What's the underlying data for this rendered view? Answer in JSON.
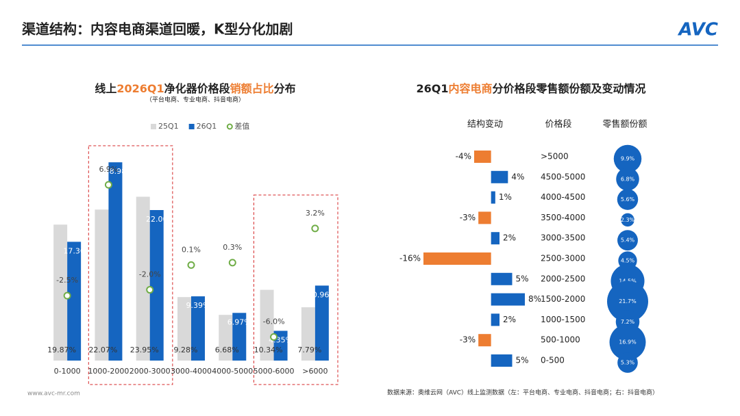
{
  "header": {
    "title": "渠道结构：内容电商渠道回暖，K型分化加剧",
    "logo": "AVC"
  },
  "chart_data": [
    {
      "type": "bar",
      "title_segments": [
        {
          "text": "线上",
          "highlight": false
        },
        {
          "text": "2026Q1",
          "highlight": true
        },
        {
          "text": "净化器价格段",
          "highlight": false
        },
        {
          "text": "销额占比",
          "highlight": true
        },
        {
          "text": "分布",
          "highlight": false
        }
      ],
      "highlight_color": "#ed7d31",
      "subtitle": "（平台电商、专业电商、抖音电商）",
      "categories": [
        "0-1000",
        "1000-2000",
        "2000-3000",
        "3000-4000",
        "4000-5000",
        "5000-6000",
        ">6000"
      ],
      "series": [
        {
          "name": "25Q1",
          "color": "#d9d9d9",
          "values": [
            19.87,
            22.07,
            23.95,
            9.28,
            6.68,
            10.34,
            7.79
          ],
          "value_labels": [
            "19.87%",
            "22.07%",
            "23.95%",
            "9.28%",
            "6.68%",
            "10.34%",
            "7.79%"
          ]
        },
        {
          "name": "26Q1",
          "color": "#1565c0",
          "values": [
            17.36,
            28.98,
            22.0,
            9.39,
            6.97,
            4.35,
            10.96
          ],
          "value_labels": [
            "17.36",
            "28.98",
            "22.00",
            "9.39%",
            "6.97%",
            "4.35%",
            "10.96%"
          ]
        },
        {
          "name": "差值",
          "type": "scatter",
          "axis": "y2",
          "color": "#70ad47",
          "values": [
            -2.5,
            6.9,
            -2.0,
            0.1,
            0.3,
            -6.0,
            3.2
          ],
          "value_labels": [
            "-2.5%",
            "6.9%",
            "-2.0%",
            "0.1%",
            "0.3%",
            "-6.0%",
            "3.2%"
          ]
        }
      ],
      "ylim": [
        0,
        30
      ],
      "y2lim": [
        -8,
        9.4
      ]
    },
    {
      "type": "bar",
      "orientation": "horizontal",
      "title_segments": [
        {
          "text": "26Q1",
          "highlight": false
        },
        {
          "text": "内容电商",
          "highlight": true
        },
        {
          "text": "分价格段零售额份额及变动情况",
          "highlight": false
        }
      ],
      "highlight_color": "#ed7d31",
      "category_header": "价格段",
      "categories": [
        ">5000",
        "4500-5000",
        "4000-4500",
        "3500-4000",
        "3000-3500",
        "2500-3000",
        "2000-2500",
        "1500-2000",
        "1000-1500",
        "500-1000",
        "0-500"
      ],
      "series": [
        {
          "name": "结构变动",
          "positive_color": "#1565c0",
          "negative_color": "#ed7d31",
          "values": [
            -4,
            4,
            1,
            -3,
            2,
            -16,
            5,
            8,
            2,
            -3,
            5
          ],
          "value_labels": [
            "-4%",
            "4%",
            "1%",
            "-3%",
            "2%",
            "-16%",
            "5%",
            "8%",
            "2%",
            "-3%",
            "5%"
          ]
        },
        {
          "name": "零售额份额",
          "type": "bubble",
          "color": "#1565c0",
          "values": [
            9.9,
            6.8,
            5.6,
            2.3,
            5.4,
            4.5,
            14.5,
            21.7,
            7.2,
            16.9,
            5.3
          ],
          "value_labels": [
            "9.9%",
            "6.8%",
            "5.6%",
            "2.3%",
            "5.4%",
            "4.5%",
            "14.5%",
            "21.7%",
            "7.2%",
            "16.9%",
            "5.3%"
          ]
        }
      ],
      "xlim": [
        -16,
        8
      ]
    }
  ],
  "footer": {
    "website": "www.avc-mr.com",
    "source": "数据来源：奥维云网（AVC）线上监测数据（左：平台电商、专业电商、抖音电商；右：抖音电商）"
  }
}
